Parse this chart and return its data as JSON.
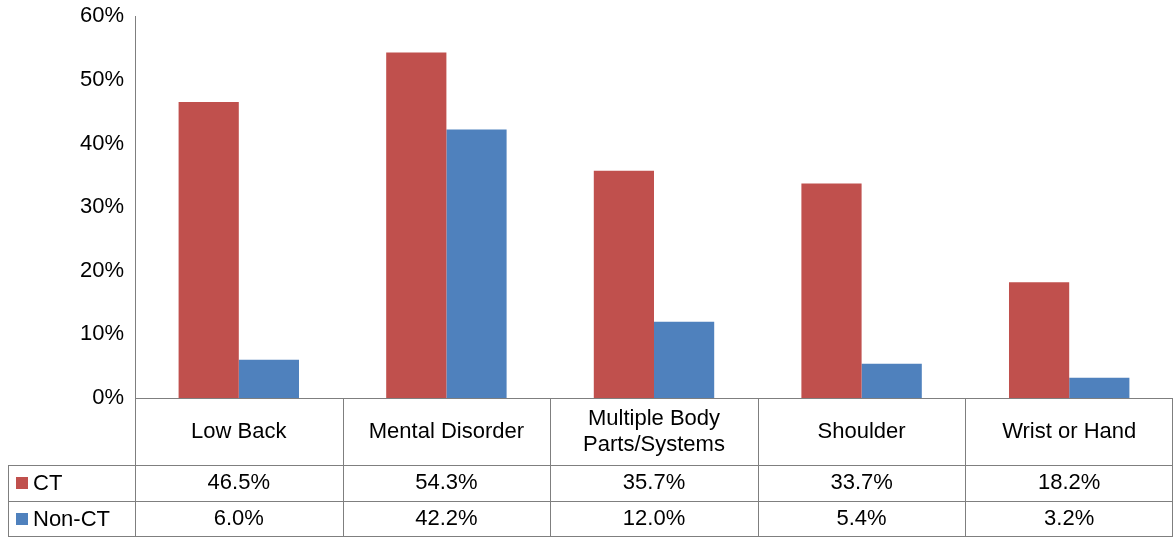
{
  "chart_data": {
    "type": "bar",
    "categories": [
      "Low Back",
      "Mental Disorder",
      "Multiple Body Parts/Systems",
      "Shoulder",
      "Wrist or Hand"
    ],
    "series": [
      {
        "name": "CT",
        "color": "#c0504d",
        "values": [
          46.5,
          54.3,
          35.7,
          33.7,
          18.2
        ]
      },
      {
        "name": "Non-CT",
        "color": "#4f81bd",
        "values": [
          6.0,
          42.2,
          12.0,
          5.4,
          3.2
        ]
      }
    ],
    "ylim": [
      0,
      60
    ],
    "yticks": [
      {
        "value": 0,
        "label": "0%"
      },
      {
        "value": 10,
        "label": "10%"
      },
      {
        "value": 20,
        "label": "20%"
      },
      {
        "value": 30,
        "label": "30%"
      },
      {
        "value": 40,
        "label": "40%"
      },
      {
        "value": 50,
        "label": "50%"
      },
      {
        "value": 60,
        "label": "60%"
      }
    ],
    "value_labels": [
      [
        "46.5%",
        "54.3%",
        "35.7%",
        "33.7%",
        "18.2%"
      ],
      [
        "6.0%",
        "42.2%",
        "12.0%",
        "5.4%",
        "3.2%"
      ]
    ],
    "grid": false,
    "legend": "bottom left"
  }
}
